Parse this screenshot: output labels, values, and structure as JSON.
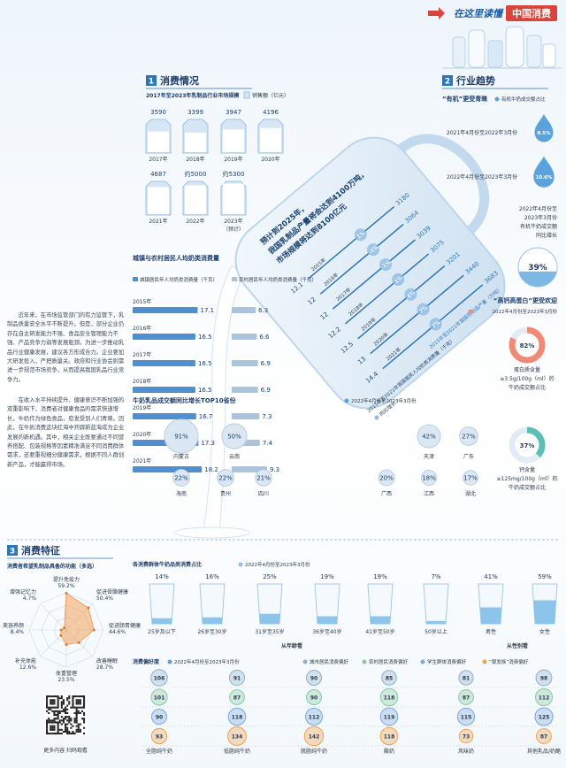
{
  "banner": {
    "left": "在这里读懂",
    "right": "中国消费"
  },
  "section1": {
    "num": "1",
    "title": "消费情况"
  },
  "section2": {
    "num": "2",
    "title": "行业趋势"
  },
  "section3": {
    "num": "3",
    "title": "消费特征"
  },
  "paragraphs": [
    "近年来，在市场监管部门的有力监管下，乳制品质量安全水平不断提升。但是，部分企业仍存在自主研发能力不强、食品安全管理能力不强、产品竞争力弱等发展瓶颈。为进一步推动乳品行业健康发展，建议各方形成合力。企业要加大研发投入，严把质量关。政府和行业协会则需进一步规范市场竞争，从而提高我国乳品行业竞争力。",
    "在收入水平持续提升、健康意识不断加强的双重影响下，消费者对健康食品的需求快速增长，牛奶作为绿色食品，愈发受到人们青睐。因此，在牛奶消费这块红海中开辟新蓝海成为企业发展的新机遇。其中，相关企业既要通过不同营养搭配、包装规格等因素精准满足不同消费群体需求，还要重视细分健康需求，根据不同人群创新产品，才能赢得市场。"
  ],
  "qr_caption": "更多内容 扫码观看",
  "chart_data": [
    {
      "type": "pictogram",
      "title": "2017年至2023年乳制品行业市场规模",
      "legend": "销售额（亿元）",
      "color": "#d6e6f4",
      "categories": [
        "2017年",
        "2018年",
        "2019年",
        "2020年",
        "2021年",
        "2022年",
        "2023年"
      ],
      "values": [
        3590,
        3399,
        3947,
        4196,
        4687,
        5000,
        5300
      ],
      "value_labels": [
        "3590",
        "3399",
        "3947",
        "4196",
        "4687",
        "约5000",
        "约5300"
      ],
      "note": "（预计）"
    },
    {
      "type": "bar",
      "title": "城镇与农村居民人均奶类消费量",
      "categories": [
        "2015年",
        "2016年",
        "2017年",
        "2018年",
        "2019年",
        "2020年",
        "2021年"
      ],
      "series": [
        {
          "name": "城镇居民年人均奶类消费量（千克）",
          "color": "#4f8fcf",
          "values": [
            17.1,
            16.5,
            16.5,
            16.5,
            16.7,
            17.3,
            18.2
          ]
        },
        {
          "name": "农村居民年人均奶类消费量（千克）",
          "color": "#a9c4dc",
          "values": [
            6.3,
            6.6,
            6.9,
            6.9,
            7.3,
            7.4,
            9.3
          ]
        }
      ]
    },
    {
      "type": "gauge",
      "annotation": [
        "预计到2025年，",
        "我国乳制品产量将会达到4100万吨，",
        "市场规模将达到8100亿元"
      ],
      "categories": [
        "2015年",
        "2016年",
        "2017年",
        "2018年",
        "2019年",
        "2020年",
        "2021年"
      ],
      "series": [
        {
          "name": "2015年至2021年我国乳制品产量（万吨）",
          "color": "#2e75b6",
          "values": [
            3180,
            3064,
            3039,
            3075,
            3201,
            3440,
            3683
          ]
        },
        {
          "name": "2015年至2021年我国居民人均奶类消费量（千克）",
          "color": "#17406e",
          "values": [
            12.1,
            12,
            12,
            12.2,
            12.5,
            13,
            14.4
          ]
        },
        {
          "name": "同比增长",
          "color": "#8fbbe3",
          "values": [
            1,
            -4,
            -1,
            1,
            4,
            7,
            7
          ],
          "value_labels": [
            "1%",
            "-4%",
            "-1%",
            "1%",
            "4%",
            "7%",
            "7%"
          ]
        }
      ]
    },
    {
      "type": "drop",
      "title": "“有机”更受青睐",
      "legend": "有机牛奶成交额占比",
      "color": "#5aa3dd",
      "categories": [
        "2021年4月份至2022年3月份",
        "2022年4月份至2023年3月份"
      ],
      "values": [
        8.5,
        10.6
      ],
      "value_labels": [
        "8.5%",
        "10.6%"
      ]
    },
    {
      "type": "fill",
      "caption": [
        "2022年4月份至",
        "2023年3月份",
        "有机牛奶成交额",
        "同比增长"
      ],
      "color": "#7db7e6",
      "values": [
        39
      ],
      "value_labels": [
        "39%"
      ]
    },
    {
      "type": "donut",
      "title": "“高钙高蛋白”更受欢迎",
      "legend": "2022年4月份至2023年3月份",
      "colors": [
        "#f08a78",
        "#5bbfb5"
      ],
      "values": [
        82,
        37
      ],
      "value_labels": [
        "82%",
        "37%"
      ],
      "captions": [
        [
          "蛋白质含量",
          "≥3.5g/100g（ml）的",
          "牛奶成交额占比"
        ],
        [
          "钙含量",
          "≥125mg/100g（ml）的",
          "牛奶成交额占比"
        ]
      ]
    },
    {
      "type": "bubble",
      "title": "牛奶乳品成交额同比增长TOP10省份",
      "legend": "2022年4月份至2023年3月份",
      "color": "#dbe7f2",
      "categories": [
        "内蒙古",
        "云南",
        "天津",
        "广东",
        "海南",
        "贵州",
        "四川",
        "广西",
        "江西",
        "湖北"
      ],
      "values": [
        91,
        50,
        42,
        27,
        22,
        22,
        21,
        20,
        18,
        17
      ],
      "value_labels": [
        "91%",
        "50%",
        "42%",
        "27%",
        "22%",
        "22%",
        "21%",
        "20%",
        "18%",
        "17%"
      ]
    },
    {
      "type": "radar",
      "title": "消费者希望乳制品具备的功能（多选）",
      "color": "#f2a25c",
      "categories": [
        "提升免疫力",
        "促进骨骼健康",
        "促进肠胃健康",
        "改善睡眠",
        "体重管理",
        "补充体能",
        "美容养颜",
        "增强记忆力"
      ],
      "values": [
        59.2,
        50.4,
        44.6,
        28.7,
        23.5,
        12.6,
        8.4,
        4.7
      ],
      "value_labels": [
        "59.2%",
        "50.4%",
        "44.6%",
        "28.7%",
        "23.5%",
        "12.6%",
        "8.4%",
        "4.7%"
      ]
    },
    {
      "type": "glass",
      "title": "各消费群体牛奶品类消费占比",
      "legend": "2022年4月份至2023年3月份",
      "color": "#8cc4ec",
      "categories": [
        "25岁及以下",
        "26岁至30岁",
        "31岁至35岁",
        "36岁至40岁",
        "41岁至50岁",
        "50岁以上",
        "男性",
        "女性"
      ],
      "values": [
        14,
        16,
        25,
        19,
        19,
        7,
        41,
        59
      ],
      "value_labels": [
        "14%",
        "16%",
        "25%",
        "19%",
        "19%",
        "7%",
        "41%",
        "59%"
      ],
      "group_labels": [
        "从年龄看",
        "从性别看"
      ]
    },
    {
      "type": "dots",
      "title": "消费偏好度",
      "legend": "2022年4月份至2023年3月份",
      "categories": [
        "全脂纯牛奶",
        "低脂纯牛奶",
        "脱脂纯牛奶",
        "酸奶",
        "风味奶",
        "其他乳品/奶酪"
      ],
      "series": [
        {
          "name": "城市居民消费偏好",
          "color": "#8fb0cc",
          "values": [
            106,
            91,
            90,
            85,
            81,
            98
          ]
        },
        {
          "name": "农村居民消费偏好",
          "color": "#86c9a4",
          "values": [
            101,
            87,
            90,
            118,
            87,
            112
          ]
        },
        {
          "name": "学生群体消费偏好",
          "color": "#7aa8de",
          "values": [
            90,
            118,
            112,
            119,
            115,
            125
          ]
        },
        {
          "name": "“银发族”消费偏好",
          "color": "#f0a04b",
          "values": [
            93,
            134,
            142,
            118,
            73,
            87
          ]
        }
      ]
    }
  ]
}
